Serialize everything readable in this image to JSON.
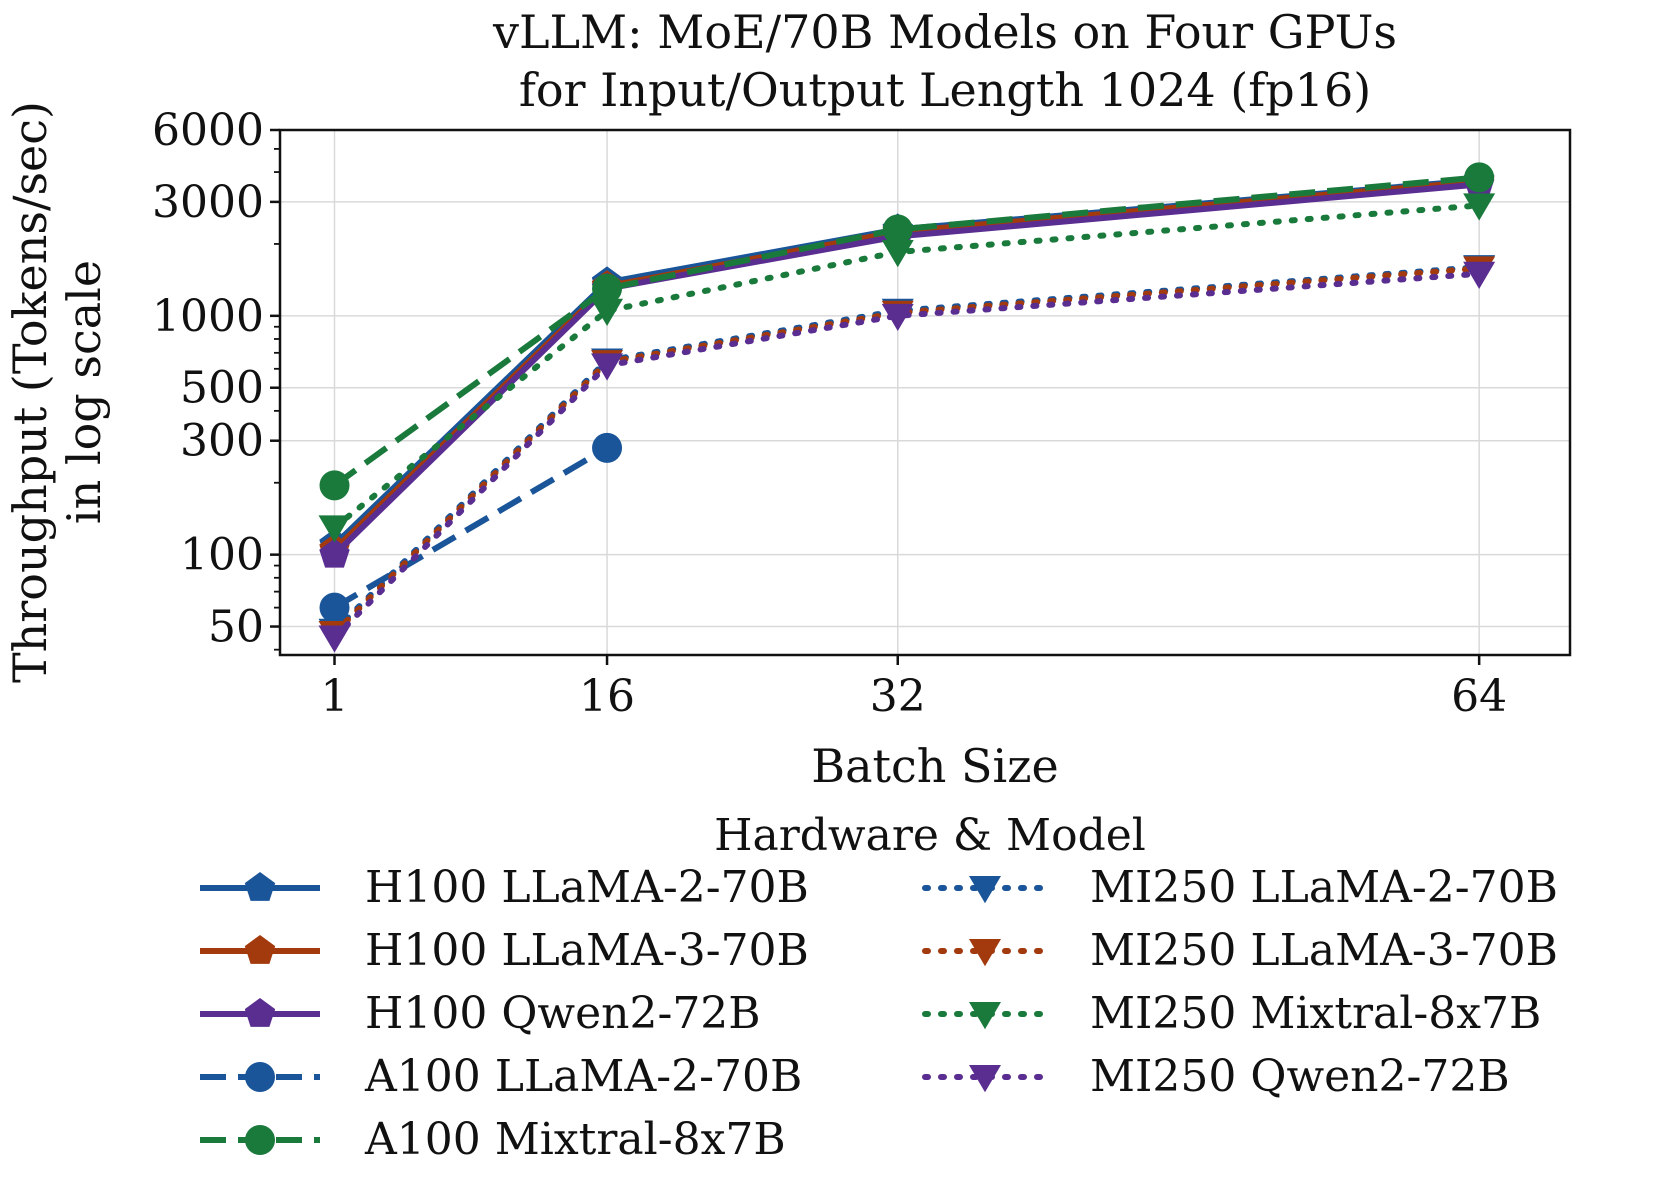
{
  "chart_data": {
    "type": "line",
    "title": "vLLM: MoE/70B Models on Four GPUs",
    "subtitle": "for Input/Output Length 1024 (fp16)",
    "xlabel": "Batch Size",
    "ylabel_line1": "Throughput (Tokens/sec)",
    "ylabel_line2": "in log scale",
    "yscale": "log",
    "ylim": [
      38,
      6000
    ],
    "xlim": [
      -2,
      69
    ],
    "x_ticks": [
      1,
      16,
      32,
      64
    ],
    "x_tick_labels": [
      "1",
      "16",
      "32",
      "64"
    ],
    "y_ticks": [
      50,
      100,
      300,
      500,
      1000,
      3000,
      6000
    ],
    "y_tick_labels": [
      "50",
      "100",
      "300",
      "500",
      "1000",
      "3000",
      "6000"
    ],
    "grid": true,
    "legend_title": "Hardware & Model",
    "legend_position": "bottom",
    "series": [
      {
        "name": "H100 LLaMA-2-70B",
        "color": "#1a5499",
        "line": "solid",
        "marker": "pentagon",
        "x": [
          1,
          16,
          32,
          64
        ],
        "values": [
          110,
          1380,
          2300,
          3700
        ]
      },
      {
        "name": "H100 LLaMA-3-70B",
        "color": "#a33a0d",
        "line": "solid",
        "marker": "pentagon",
        "x": [
          1,
          16,
          32,
          64
        ],
        "values": [
          105,
          1330,
          2250,
          3650
        ]
      },
      {
        "name": "H100 Qwen2-72B",
        "color": "#5a2d91",
        "line": "solid",
        "marker": "pentagon",
        "x": [
          1,
          16,
          32,
          64
        ],
        "values": [
          100,
          1300,
          2150,
          3550
        ]
      },
      {
        "name": "A100 LLaMA-2-70B",
        "color": "#1a5499",
        "line": "dashed",
        "marker": "circle",
        "x": [
          1,
          16
        ],
        "values": [
          60,
          280
        ]
      },
      {
        "name": "A100 Mixtral-8x7B",
        "color": "#1a7a3c",
        "line": "dashed",
        "marker": "circle",
        "x": [
          1,
          16,
          32,
          64
        ],
        "values": [
          195,
          1300,
          2300,
          3800
        ]
      },
      {
        "name": "MI250 LLaMA-2-70B",
        "color": "#1a5499",
        "line": "dotted",
        "marker": "triangle-down",
        "x": [
          1,
          16,
          32,
          64
        ],
        "values": [
          48,
          650,
          1050,
          1600
        ]
      },
      {
        "name": "MI250 LLaMA-3-70B",
        "color": "#a33a0d",
        "line": "dotted",
        "marker": "triangle-down",
        "x": [
          1,
          16,
          32,
          64
        ],
        "values": [
          47,
          640,
          1030,
          1580
        ]
      },
      {
        "name": "MI250 Mixtral-8x7B",
        "color": "#1a7a3c",
        "line": "dotted",
        "marker": "triangle-down",
        "x": [
          1,
          16,
          32,
          64
        ],
        "values": [
          130,
          1050,
          1850,
          2900
        ]
      },
      {
        "name": "MI250 Qwen2-72B",
        "color": "#5a2d91",
        "line": "dotted",
        "marker": "triangle-down",
        "x": [
          1,
          16,
          32,
          64
        ],
        "values": [
          45,
          620,
          1000,
          1500
        ]
      }
    ]
  }
}
